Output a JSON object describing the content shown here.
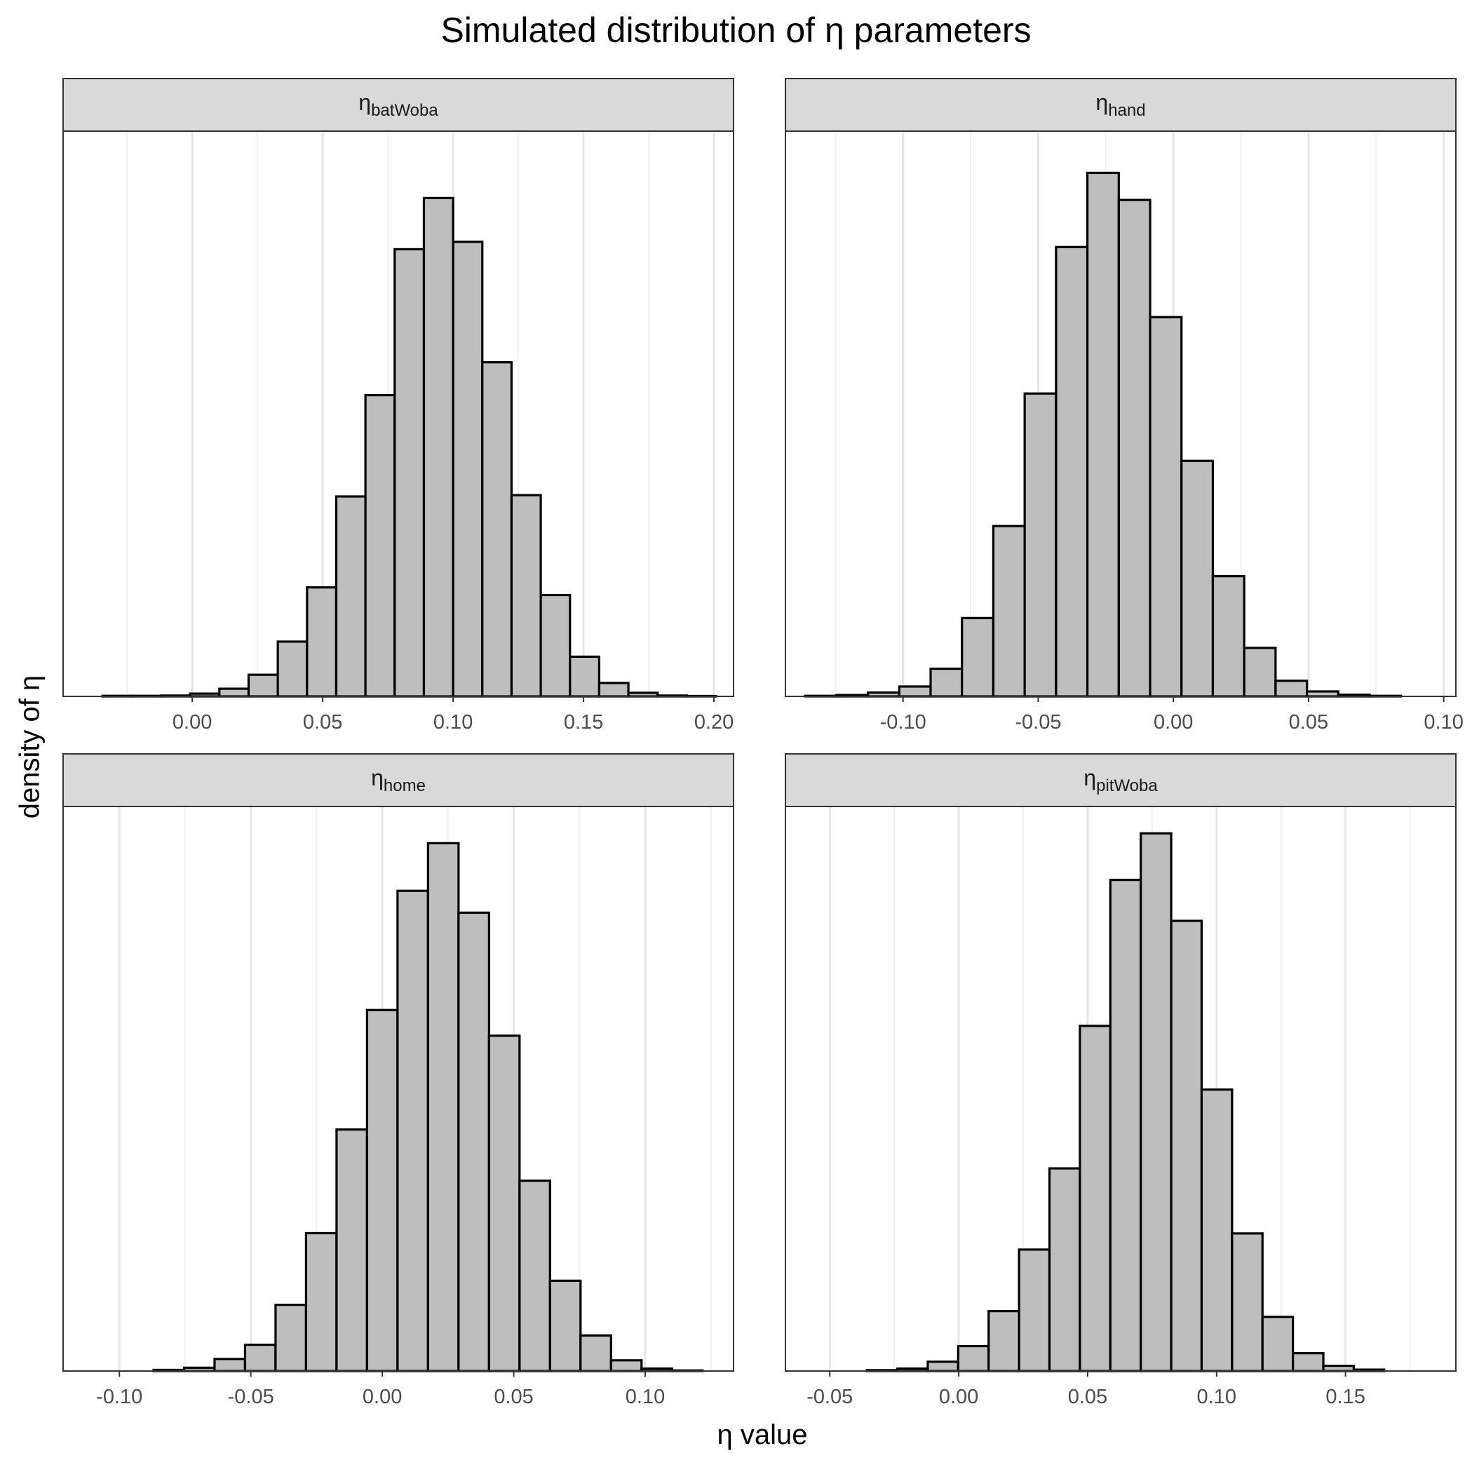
{
  "chart_data": {
    "title": "Simulated distribution of η parameters",
    "xlabel": "η value",
    "ylabel": "density of η",
    "grid": true,
    "panels": [
      {
        "type": "histogram",
        "strip_base": "η",
        "strip_sub": "batWoba",
        "xlim": [
          -0.0495,
          0.2075
        ],
        "ticks": [
          0.0,
          0.05,
          0.1,
          0.15,
          0.2
        ],
        "tick_labels": [
          "0.00",
          "0.05",
          "0.10",
          "0.15",
          "0.20"
        ],
        "bin_width": 0.0112,
        "bin_start": -0.0344,
        "values": [
          0.2,
          0.2,
          0.3,
          1.0,
          2.8,
          7.9,
          20.0,
          39.8,
          73.0,
          110.0,
          163.3,
          182.0,
          166.0,
          122.0,
          73.5,
          37.0,
          14.5,
          4.9,
          1.3,
          0.3,
          0.1
        ]
      },
      {
        "type": "histogram",
        "strip_base": "η",
        "strip_sub": "hand",
        "xlim": [
          -0.1435,
          0.1045
        ],
        "ticks": [
          -0.1,
          -0.05,
          0.0,
          0.05,
          0.1
        ],
        "tick_labels": [
          "-0.10",
          "-0.05",
          "0.00",
          "0.05",
          "0.10"
        ],
        "bin_width": 0.0116,
        "bin_start": -0.1362,
        "values": [
          0.2,
          0.5,
          1.4,
          3.6,
          10.1,
          28.6,
          62.2,
          110.6,
          164.1,
          191.2,
          181.3,
          138.5,
          86.0,
          43.9,
          17.7,
          5.7,
          1.8,
          0.6,
          0.2
        ]
      },
      {
        "type": "histogram",
        "strip_base": "η",
        "strip_sub": "home",
        "xlim": [
          -0.1214,
          0.1336
        ],
        "ticks": [
          -0.1,
          -0.05,
          0.0,
          0.05,
          0.1
        ],
        "tick_labels": [
          "-0.10",
          "-0.05",
          "0.00",
          "0.05",
          "0.10"
        ],
        "bin_width": 0.0116,
        "bin_start": -0.087,
        "values": [
          0.4,
          1.2,
          4.4,
          9.6,
          24.2,
          50.4,
          88.3,
          132.0,
          175.6,
          193.0,
          167.6,
          122.6,
          69.6,
          33.0,
          13.0,
          3.9,
          0.9,
          0.2
        ]
      },
      {
        "type": "histogram",
        "strip_base": "η",
        "strip_sub": "pitWoba",
        "xlim": [
          -0.0672,
          0.1928
        ],
        "ticks": [
          -0.05,
          0.0,
          0.05,
          0.1,
          0.15
        ],
        "tick_labels": [
          "-0.05",
          "0.00",
          "0.05",
          "0.10",
          "0.15"
        ],
        "bin_width": 0.0118,
        "bin_start": -0.0356,
        "values": [
          0.3,
          0.9,
          3.4,
          9.1,
          21.9,
          44.4,
          74.1,
          126.2,
          179.6,
          196.6,
          164.6,
          102.9,
          50.3,
          19.8,
          6.5,
          1.9,
          0.5
        ]
      }
    ]
  }
}
